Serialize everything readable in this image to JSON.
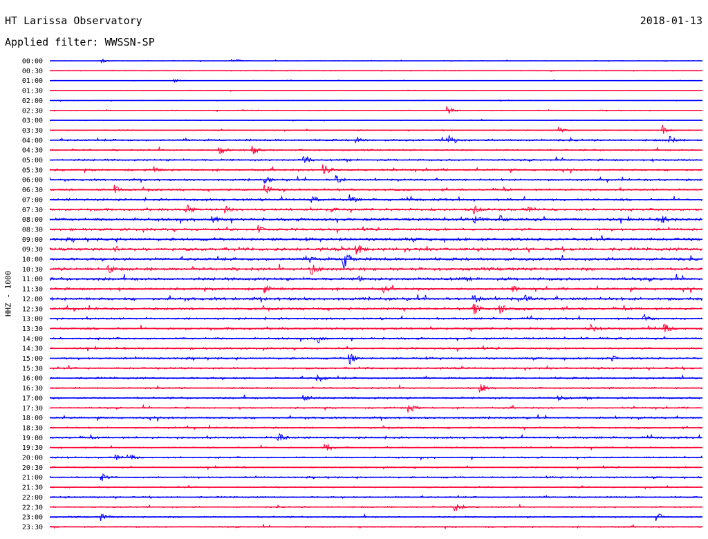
{
  "header": {
    "station": "HT Larissa Observatory",
    "date": "2018-01-13",
    "filter": "Applied filter: WWSSN-SP"
  },
  "chart_data": {
    "type": "line",
    "title": "HT Larissa Observatory",
    "ylabel": "HHZ - 1000",
    "tick_labels": [
      "00:00",
      "00:30",
      "01:00",
      "01:30",
      "02:00",
      "02:30",
      "03:00",
      "03:30",
      "04:00",
      "04:30",
      "05:00",
      "05:30",
      "06:00",
      "06:30",
      "07:00",
      "07:30",
      "08:00",
      "08:30",
      "09:00",
      "09:30",
      "10:00",
      "10:30",
      "11:00",
      "11:30",
      "12:00",
      "12:30",
      "13:00",
      "13:30",
      "14:00",
      "14:30",
      "15:00",
      "15:30",
      "16:00",
      "16:30",
      "17:00",
      "17:30",
      "18:00",
      "18:30",
      "19:00",
      "19:30",
      "20:00",
      "20:30",
      "21:00",
      "21:30",
      "22:00",
      "22:30",
      "23:00",
      "23:30"
    ],
    "trace_colors": [
      "#0000ff",
      "#ff0033"
    ],
    "noise_level": [
      0.3,
      0.3,
      0.3,
      0.3,
      0.3,
      0.4,
      0.4,
      0.5,
      1.0,
      0.8,
      1.0,
      1.0,
      1.0,
      1.0,
      1.2,
      1.2,
      1.5,
      1.2,
      1.5,
      1.5,
      1.5,
      1.5,
      1.5,
      1.2,
      1.5,
      1.2,
      1.0,
      1.2,
      1.0,
      1.0,
      1.0,
      1.0,
      1.0,
      0.8,
      1.0,
      0.8,
      1.0,
      0.8,
      1.0,
      0.8,
      0.8,
      0.7,
      0.8,
      0.7,
      0.8,
      0.7,
      0.8,
      0.7
    ],
    "events": [
      {
        "row": 0,
        "t": 0.08,
        "amp": 3
      },
      {
        "row": 0,
        "t": 0.28,
        "amp": 4
      },
      {
        "row": 2,
        "t": 0.19,
        "amp": 3
      },
      {
        "row": 5,
        "t": 0.61,
        "amp": 6
      },
      {
        "row": 7,
        "t": 0.78,
        "amp": 5
      },
      {
        "row": 7,
        "t": 0.94,
        "amp": 7
      },
      {
        "row": 8,
        "t": 0.61,
        "amp": 12
      },
      {
        "row": 8,
        "t": 0.47,
        "amp": 5
      },
      {
        "row": 8,
        "t": 0.95,
        "amp": 6
      },
      {
        "row": 9,
        "t": 0.26,
        "amp": 8
      },
      {
        "row": 9,
        "t": 0.31,
        "amp": 8
      },
      {
        "row": 10,
        "t": 0.39,
        "amp": 9
      },
      {
        "row": 11,
        "t": 0.42,
        "amp": 9
      },
      {
        "row": 11,
        "t": 0.16,
        "amp": 5
      },
      {
        "row": 12,
        "t": 0.33,
        "amp": 6
      },
      {
        "row": 12,
        "t": 0.44,
        "amp": 7
      },
      {
        "row": 13,
        "t": 0.1,
        "amp": 7
      },
      {
        "row": 13,
        "t": 0.33,
        "amp": 9
      },
      {
        "row": 14,
        "t": 0.4,
        "amp": 9
      },
      {
        "row": 14,
        "t": 0.46,
        "amp": 8
      },
      {
        "row": 15,
        "t": 0.21,
        "amp": 8
      },
      {
        "row": 15,
        "t": 0.27,
        "amp": 6
      },
      {
        "row": 15,
        "t": 0.43,
        "amp": 6
      },
      {
        "row": 15,
        "t": 0.65,
        "amp": 8
      },
      {
        "row": 15,
        "t": 0.73,
        "amp": 6
      },
      {
        "row": 16,
        "t": 0.25,
        "amp": 9
      },
      {
        "row": 16,
        "t": 0.65,
        "amp": 9
      },
      {
        "row": 16,
        "t": 0.69,
        "amp": 8
      },
      {
        "row": 16,
        "t": 0.94,
        "amp": 6
      },
      {
        "row": 17,
        "t": 0.32,
        "amp": 7
      },
      {
        "row": 19,
        "t": 0.1,
        "amp": 7
      },
      {
        "row": 19,
        "t": 0.47,
        "amp": 11
      },
      {
        "row": 20,
        "t": 0.45,
        "amp": 16
      },
      {
        "row": 20,
        "t": 0.4,
        "amp": 7
      },
      {
        "row": 21,
        "t": 0.09,
        "amp": 8
      },
      {
        "row": 21,
        "t": 0.4,
        "amp": 10
      },
      {
        "row": 22,
        "t": 0.47,
        "amp": 7
      },
      {
        "row": 23,
        "t": 0.33,
        "amp": 7
      },
      {
        "row": 23,
        "t": 0.51,
        "amp": 7
      },
      {
        "row": 23,
        "t": 0.71,
        "amp": 6
      },
      {
        "row": 24,
        "t": 0.65,
        "amp": 8
      },
      {
        "row": 24,
        "t": 0.73,
        "amp": 7
      },
      {
        "row": 25,
        "t": 0.65,
        "amp": 9
      },
      {
        "row": 25,
        "t": 0.69,
        "amp": 9
      },
      {
        "row": 26,
        "t": 0.91,
        "amp": 8
      },
      {
        "row": 27,
        "t": 0.94,
        "amp": 9
      },
      {
        "row": 27,
        "t": 0.83,
        "amp": 6
      },
      {
        "row": 28,
        "t": 0.41,
        "amp": 8
      },
      {
        "row": 30,
        "t": 0.46,
        "amp": 9
      },
      {
        "row": 30,
        "t": 0.86,
        "amp": 7
      },
      {
        "row": 32,
        "t": 0.41,
        "amp": 8
      },
      {
        "row": 33,
        "t": 0.66,
        "amp": 8
      },
      {
        "row": 34,
        "t": 0.39,
        "amp": 8
      },
      {
        "row": 34,
        "t": 0.78,
        "amp": 6
      },
      {
        "row": 35,
        "t": 0.55,
        "amp": 8
      },
      {
        "row": 38,
        "t": 0.35,
        "amp": 10
      },
      {
        "row": 39,
        "t": 0.42,
        "amp": 11
      },
      {
        "row": 40,
        "t": 0.1,
        "amp": 5
      },
      {
        "row": 40,
        "t": 0.12,
        "amp": 6
      },
      {
        "row": 42,
        "t": 0.08,
        "amp": 6
      },
      {
        "row": 45,
        "t": 0.62,
        "amp": 10
      },
      {
        "row": 46,
        "t": 0.08,
        "amp": 6
      },
      {
        "row": 46,
        "t": 0.93,
        "amp": 7
      }
    ]
  }
}
